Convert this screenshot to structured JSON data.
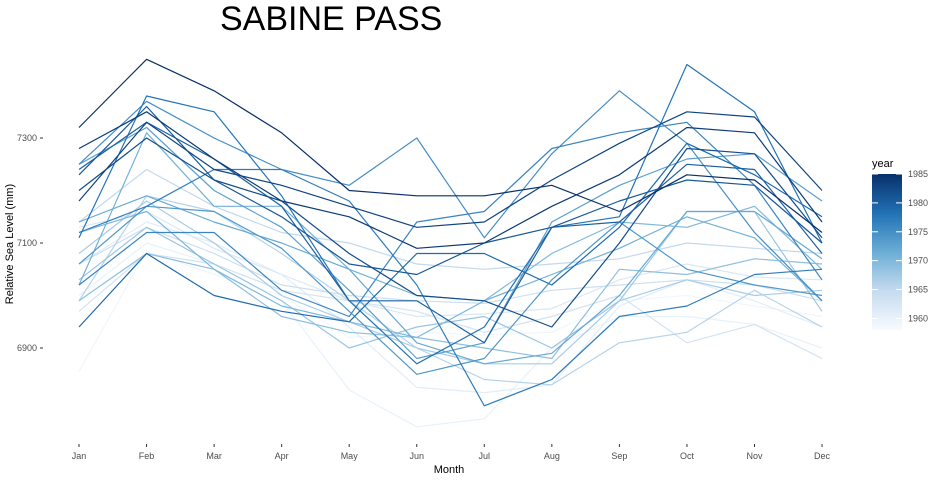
{
  "chart_data": {
    "type": "line",
    "title": "SABINE PASS",
    "xlabel": "Month",
    "ylabel": "Relative Sea Level (mm)",
    "categories": [
      "Jan",
      "Feb",
      "Mar",
      "Apr",
      "May",
      "Jun",
      "Jul",
      "Aug",
      "Sep",
      "Oct",
      "Nov",
      "Dec"
    ],
    "y_ticks": [
      6900,
      7100,
      7300
    ],
    "ylim": [
      6750,
      7460
    ],
    "grid": false,
    "legend": {
      "title": "year",
      "placement": "right",
      "type": "colorbar",
      "range": [
        1958,
        1985
      ],
      "ticks": [
        1960,
        1965,
        1970,
        1975,
        1980,
        1985
      ],
      "colors": [
        "#f7fbff",
        "#08306b"
      ]
    },
    "series": [
      {
        "year": 1959,
        "values": [
          6855,
          7085,
          7040,
          7000,
          6920,
          6930,
          6925,
          6930,
          6990,
          7000,
          6980,
          6960
        ]
      },
      {
        "year": 1960,
        "values": [
          7000,
          7100,
          7060,
          6990,
          6820,
          6750,
          6765,
          6900,
          6960,
          6960,
          6945,
          6900
        ]
      },
      {
        "year": 1961,
        "values": [
          7060,
          7140,
          7100,
          7040,
          6940,
          6825,
          6815,
          6830,
          6980,
          7030,
          6990,
          6940
        ]
      },
      {
        "year": 1962,
        "values": [
          7130,
          7160,
          7090,
          7040,
          6990,
          6960,
          6965,
          6975,
          7030,
          7060,
          7035,
          7030
        ]
      },
      {
        "year": 1963,
        "values": [
          6970,
          7080,
          7060,
          7010,
          6990,
          6970,
          6930,
          6960,
          7000,
          6910,
          6945,
          6880
        ]
      },
      {
        "year": 1964,
        "values": [
          7060,
          7130,
          7080,
          7020,
          7000,
          6990,
          6985,
          7010,
          7020,
          7030,
          7020,
          6990
        ]
      },
      {
        "year": 1965,
        "values": [
          7140,
          7240,
          7170,
          7120,
          7100,
          7060,
          7050,
          7060,
          7070,
          7100,
          7090,
          7080
        ]
      },
      {
        "year": 1966,
        "values": [
          6990,
          7190,
          7160,
          7080,
          6990,
          6900,
          6840,
          6830,
          6910,
          6930,
          7010,
          6940
        ]
      },
      {
        "year": 1967,
        "values": [
          7080,
          7180,
          7100,
          7000,
          6950,
          6900,
          6870,
          6870,
          6990,
          7030,
          7000,
          7010
        ]
      },
      {
        "year": 1968,
        "values": [
          7030,
          7130,
          7060,
          6990,
          6900,
          6940,
          6960,
          6900,
          6990,
          7160,
          7160,
          6970
        ]
      },
      {
        "year": 1969,
        "values": [
          6990,
          7080,
          7050,
          6960,
          6930,
          6920,
          6900,
          6880,
          7050,
          7040,
          7070,
          7060
        ]
      },
      {
        "year": 1970,
        "values": [
          7120,
          7160,
          7050,
          6980,
          6950,
          6920,
          6990,
          7080,
          7140,
          7130,
          7170,
          7050
        ]
      },
      {
        "year": 1971,
        "values": [
          7020,
          7310,
          7170,
          7170,
          7050,
          7000,
          6990,
          7040,
          7090,
          7150,
          7110,
          6990
        ]
      },
      {
        "year": 1972,
        "values": [
          7140,
          7190,
          7140,
          7100,
          7050,
          6910,
          6870,
          6890,
          7000,
          7160,
          7160,
          7070
        ]
      },
      {
        "year": 1973,
        "values": [
          7250,
          7320,
          7200,
          7130,
          7010,
          6880,
          6910,
          7140,
          7210,
          7260,
          7270,
          7180
        ]
      },
      {
        "year": 1974,
        "values": [
          7060,
          7170,
          7160,
          7090,
          6970,
          6850,
          6880,
          7030,
          7140,
          7050,
          7020,
          7000
        ]
      },
      {
        "year": 1975,
        "values": [
          7250,
          7370,
          7300,
          7240,
          7210,
          7300,
          7110,
          7270,
          7390,
          7290,
          7120,
          6990
        ]
      },
      {
        "year": 1976,
        "values": [
          7020,
          7120,
          7120,
          7010,
          6960,
          7140,
          7160,
          7280,
          7310,
          7330,
          7210,
          7030
        ]
      },
      {
        "year": 1977,
        "values": [
          7120,
          7170,
          7240,
          7240,
          7180,
          7020,
          6790,
          6840,
          6960,
          6980,
          7040,
          7050
        ]
      },
      {
        "year": 1978,
        "values": [
          7110,
          7380,
          7350,
          7190,
          6990,
          6870,
          6940,
          7130,
          7150,
          7440,
          7350,
          7100
        ]
      },
      {
        "year": 1979,
        "values": [
          6940,
          7080,
          7000,
          6970,
          6950,
          7080,
          7080,
          7020,
          7130,
          7290,
          7230,
          7150
        ]
      },
      {
        "year": 1980,
        "values": [
          7240,
          7330,
          7260,
          7170,
          6990,
          6990,
          6910,
          7130,
          7140,
          7250,
          7240,
          7080
        ]
      },
      {
        "year": 1981,
        "values": [
          7230,
          7360,
          7220,
          7150,
          7060,
          7040,
          7100,
          7130,
          7180,
          7220,
          7210,
          7100
        ]
      },
      {
        "year": 1982,
        "values": [
          7200,
          7300,
          7220,
          7180,
          7080,
          7000,
          6990,
          6940,
          7100,
          7280,
          7270,
          7110
        ]
      },
      {
        "year": 1983,
        "values": [
          7180,
          7330,
          7240,
          7210,
          7170,
          7130,
          7140,
          7220,
          7290,
          7350,
          7340,
          7200
        ]
      },
      {
        "year": 1984,
        "values": [
          7280,
          7350,
          7260,
          7180,
          7150,
          7090,
          7100,
          7170,
          7230,
          7320,
          7310,
          7140
        ]
      },
      {
        "year": 1985,
        "values": [
          7320,
          7450,
          7390,
          7310,
          7200,
          7190,
          7190,
          7210,
          7160,
          7230,
          7220,
          7120
        ]
      }
    ]
  }
}
